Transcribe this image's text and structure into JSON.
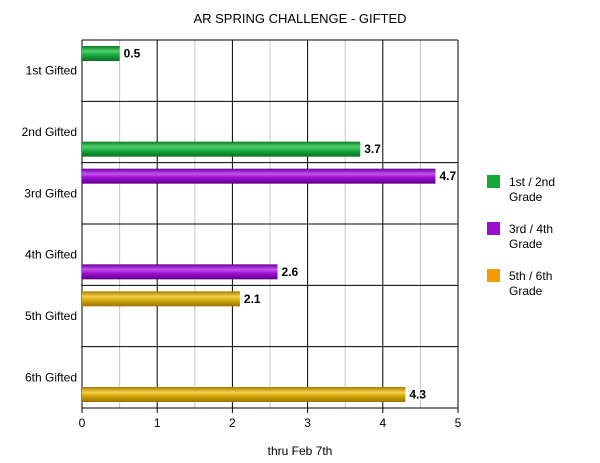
{
  "chart_data": {
    "type": "bar",
    "orientation": "horizontal",
    "title": "AR SPRING CHALLENGE - GIFTED",
    "xlabel": "thru Feb 7th",
    "ylabel": "",
    "xlim": [
      0,
      5
    ],
    "xticks": [
      "0",
      "1",
      "2",
      "3",
      "4",
      "5"
    ],
    "categories": [
      "1st Gifted",
      "2nd Gifted",
      "3rd Gifted",
      "4th Gifted",
      "5th Gifted",
      "6th Gifted"
    ],
    "values": [
      0.5,
      3.7,
      4.7,
      2.6,
      2.1,
      4.3
    ],
    "bar_groups": [
      0,
      0,
      1,
      1,
      2,
      2
    ],
    "legend": {
      "placement": "right",
      "entries": [
        {
          "lines": [
            "1st / 2nd",
            "Grade"
          ],
          "color": "#14a83b"
        },
        {
          "lines": [
            "3rd / 4th",
            "Grade"
          ],
          "color": "#9b0fcf"
        },
        {
          "lines": [
            "5th / 6th",
            "Grade"
          ],
          "color": "#f19a05"
        }
      ]
    },
    "bar_colors": [
      "#14a83b",
      "#9b0fcf",
      "#d4a90a"
    ],
    "grid": true
  }
}
